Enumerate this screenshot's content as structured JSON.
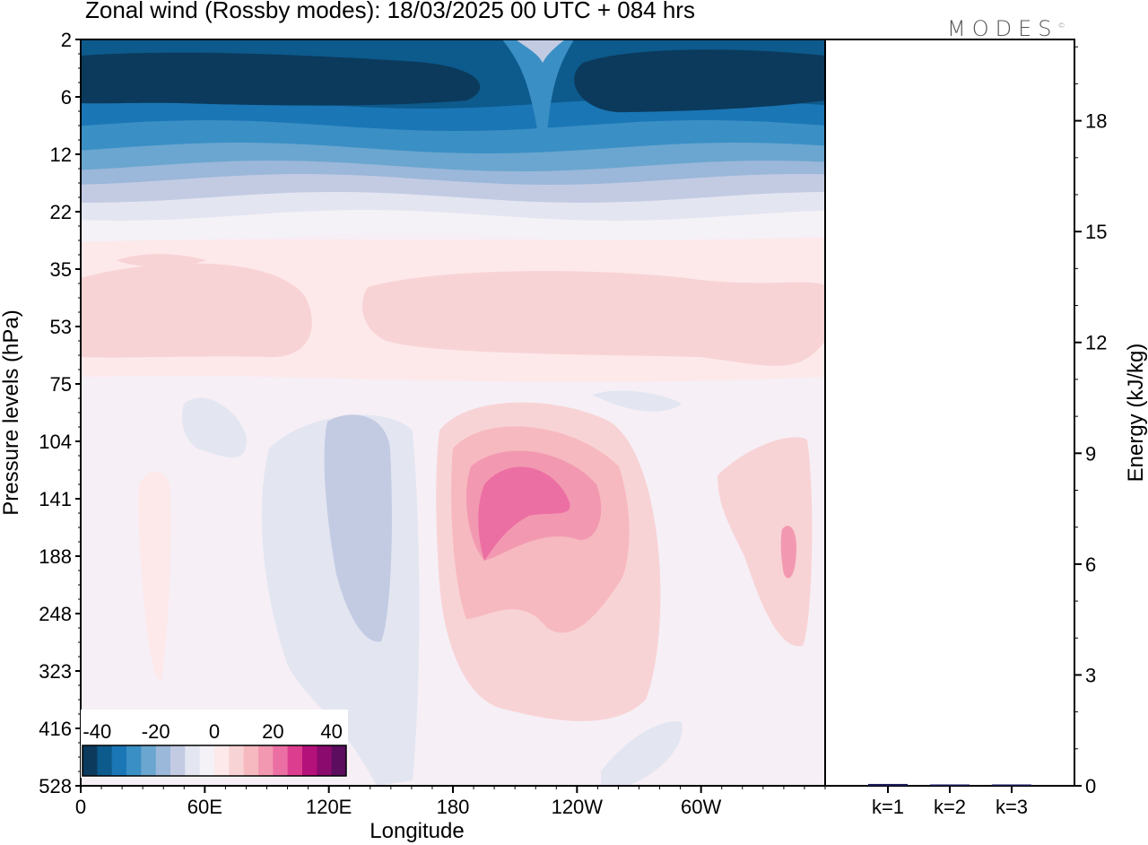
{
  "title": "Zonal wind (Rossby modes):  18/03/2025  00 UTC  + 084 hrs",
  "logo": "MODES",
  "logo_mark": "©",
  "chart_data": [
    {
      "type": "heatmap",
      "title": "Zonal wind (Rossby modes):  18/03/2025  00 UTC  + 084 hrs",
      "xlabel": "Longitude",
      "ylabel": "Pressure levels (hPa)",
      "x_ticks": [
        "0",
        "60E",
        "120E",
        "180",
        "120W",
        "60W"
      ],
      "y_ticks": [
        "2",
        "6",
        "12",
        "22",
        "35",
        "53",
        "75",
        "104",
        "141",
        "188",
        "248",
        "323",
        "416",
        "528"
      ],
      "colorbar": {
        "tick_labels": [
          "-40",
          "-20",
          "0",
          "20",
          "40"
        ],
        "range": [
          -45,
          45
        ],
        "colors": [
          "#0b3a5c",
          "#0d5a8c",
          "#1a76b5",
          "#3a8fc5",
          "#6aa6cf",
          "#9bb7d9",
          "#c3cbe3",
          "#e3e6f1",
          "#f4f1f7",
          "#fde9ea",
          "#f8d3d5",
          "#f6b9bf",
          "#f299b1",
          "#ec6fa3",
          "#dd3d8e",
          "#b5117a",
          "#8a0a6d",
          "#5c0d5e"
        ]
      },
      "field_summary": [
        {
          "region": "upper levels 2-12 hPa",
          "approx_value": -40
        },
        {
          "region": "12-22 hPa",
          "approx_value": -15
        },
        {
          "region": "35-75 hPa",
          "approx_value": 5
        },
        {
          "region": "141-188 hPa near 160W",
          "approx_value": 20
        },
        {
          "region": "104-248 hPa near 120E",
          "approx_value": -12
        }
      ]
    },
    {
      "type": "bar",
      "categories": [
        "k=1",
        "k=2",
        "k=3"
      ],
      "values": [
        0.05,
        0.02,
        0.02
      ],
      "ylabel": "Energy (kJ/kg)",
      "ylim": [
        0,
        20.2
      ],
      "y_ticks": [
        0,
        3,
        6,
        9,
        12,
        15,
        18
      ],
      "color": "#1a1a5c"
    }
  ]
}
